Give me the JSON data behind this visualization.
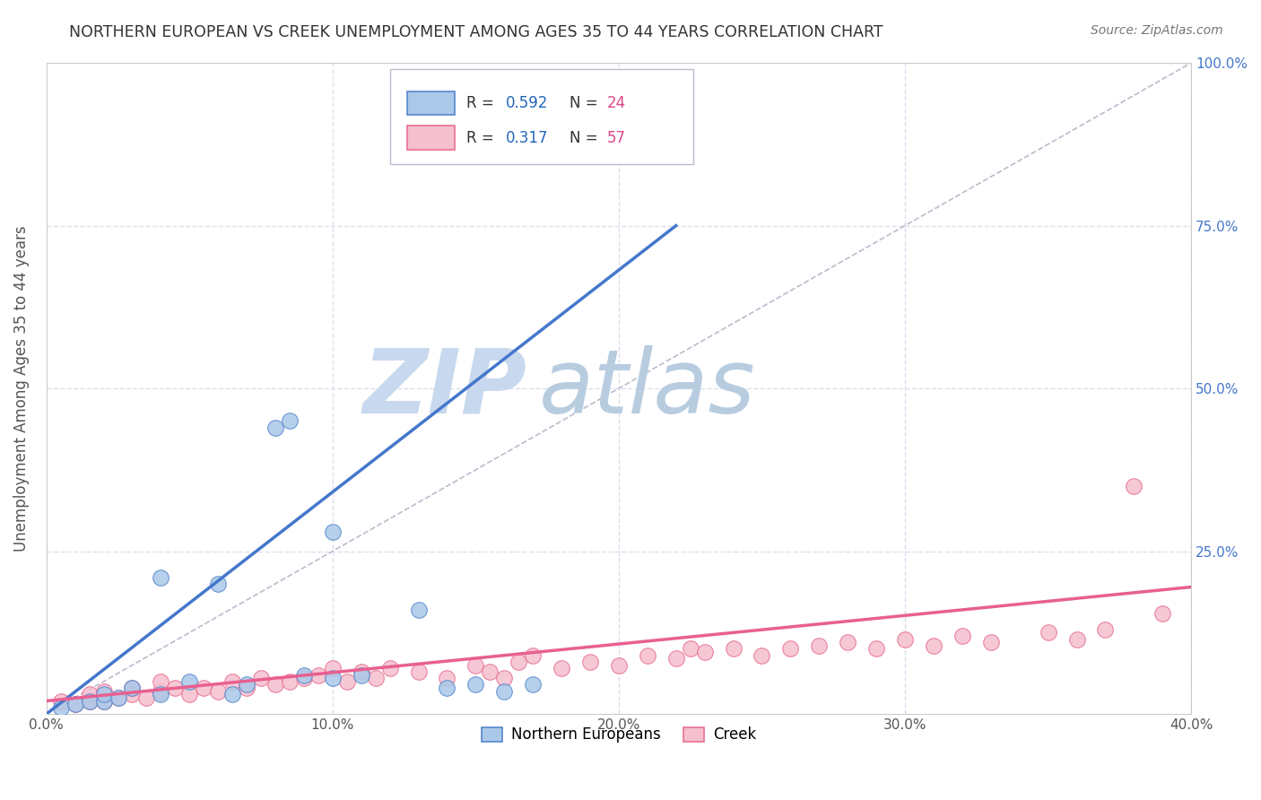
{
  "title": "NORTHERN EUROPEAN VS CREEK UNEMPLOYMENT AMONG AGES 35 TO 44 YEARS CORRELATION CHART",
  "source": "Source: ZipAtlas.com",
  "ylabel": "Unemployment Among Ages 35 to 44 years",
  "xlim": [
    0.0,
    0.4
  ],
  "ylim": [
    0.0,
    1.0
  ],
  "xticks": [
    0.0,
    0.1,
    0.2,
    0.3,
    0.4
  ],
  "yticks": [
    0.0,
    0.25,
    0.5,
    0.75,
    1.0
  ],
  "xticklabels": [
    "0.0%",
    "10.0%",
    "20.0%",
    "30.0%",
    "40.0%"
  ],
  "yticklabels_right": [
    "",
    "25.0%",
    "50.0%",
    "75.0%",
    "100.0%"
  ],
  "blue_R": 0.592,
  "blue_N": 24,
  "pink_R": 0.317,
  "pink_N": 57,
  "blue_scatter_color": "#aac8e8",
  "pink_scatter_color": "#f5bfcf",
  "blue_edge_color": "#5588cc",
  "pink_edge_color": "#e87090",
  "blue_line_color": "#4477cc",
  "pink_line_color": "#e86090",
  "ref_line_color": "#bbbbcc",
  "grid_color": "#ddddee",
  "watermark_zip_color": "#c8d8ee",
  "watermark_atlas_color": "#b8cce0",
  "legend_R_color": "#2266bb",
  "legend_N_color": "#dd4488",
  "title_color": "#333333",
  "source_color": "#777777",
  "right_tick_color": "#4477cc",
  "blue_scatter_x": [
    0.005,
    0.01,
    0.015,
    0.02,
    0.02,
    0.025,
    0.03,
    0.04,
    0.04,
    0.05,
    0.06,
    0.065,
    0.07,
    0.08,
    0.085,
    0.09,
    0.1,
    0.1,
    0.11,
    0.13,
    0.14,
    0.15,
    0.16,
    0.17
  ],
  "blue_scatter_y": [
    0.01,
    0.015,
    0.02,
    0.02,
    0.03,
    0.025,
    0.04,
    0.03,
    0.21,
    0.05,
    0.2,
    0.03,
    0.045,
    0.44,
    0.45,
    0.06,
    0.055,
    0.28,
    0.06,
    0.16,
    0.04,
    0.045,
    0.035,
    0.045
  ],
  "pink_scatter_x": [
    0.005,
    0.01,
    0.015,
    0.015,
    0.02,
    0.02,
    0.025,
    0.03,
    0.03,
    0.035,
    0.04,
    0.04,
    0.045,
    0.05,
    0.055,
    0.06,
    0.065,
    0.07,
    0.075,
    0.08,
    0.085,
    0.09,
    0.095,
    0.1,
    0.105,
    0.11,
    0.115,
    0.12,
    0.13,
    0.14,
    0.15,
    0.155,
    0.16,
    0.165,
    0.17,
    0.18,
    0.19,
    0.2,
    0.21,
    0.22,
    0.225,
    0.23,
    0.24,
    0.25,
    0.26,
    0.27,
    0.28,
    0.29,
    0.3,
    0.31,
    0.32,
    0.33,
    0.35,
    0.36,
    0.37,
    0.38,
    0.39
  ],
  "pink_scatter_y": [
    0.02,
    0.015,
    0.02,
    0.03,
    0.02,
    0.035,
    0.025,
    0.03,
    0.04,
    0.025,
    0.035,
    0.05,
    0.04,
    0.03,
    0.04,
    0.035,
    0.05,
    0.04,
    0.055,
    0.045,
    0.05,
    0.055,
    0.06,
    0.07,
    0.05,
    0.065,
    0.055,
    0.07,
    0.065,
    0.055,
    0.075,
    0.065,
    0.055,
    0.08,
    0.09,
    0.07,
    0.08,
    0.075,
    0.09,
    0.085,
    0.1,
    0.095,
    0.1,
    0.09,
    0.1,
    0.105,
    0.11,
    0.1,
    0.115,
    0.105,
    0.12,
    0.11,
    0.125,
    0.115,
    0.13,
    0.35,
    0.155
  ],
  "blue_line_x1": 0.0,
  "blue_line_y1": 0.0,
  "blue_line_x2": 0.22,
  "blue_line_y2": 0.75,
  "pink_line_x1": 0.0,
  "pink_line_y1": 0.02,
  "pink_line_x2": 0.4,
  "pink_line_y2": 0.195,
  "ref_line_x1": 0.0,
  "ref_line_y1": 0.0,
  "ref_line_x2": 0.4,
  "ref_line_y2": 1.0
}
